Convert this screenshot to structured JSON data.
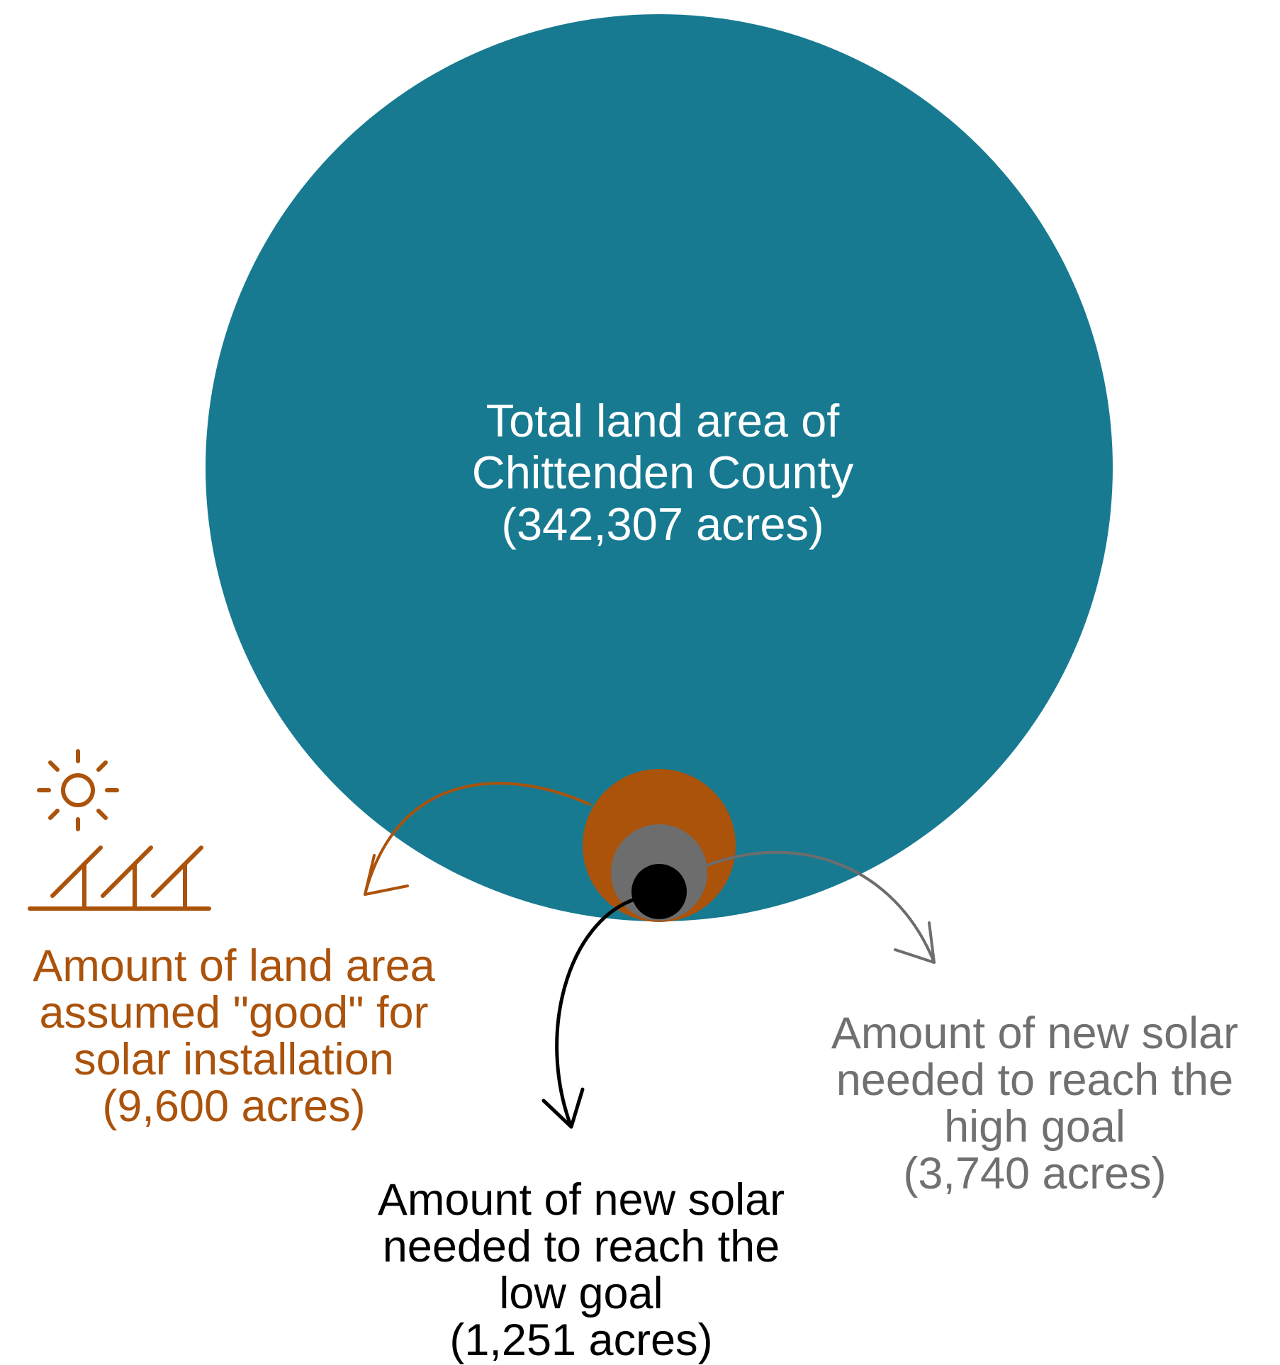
{
  "colors": {
    "total": "#177a91",
    "good": "#ab520b",
    "high": "#6d6d6d",
    "low": "#000000",
    "high_text": "#707070",
    "total_text": "#ffffff"
  },
  "icons": {
    "good": "solar-panel-icon"
  },
  "areas": {
    "total": {
      "line1": "Total land area of",
      "line2": "Chittenden County",
      "line3": "(342,307 acres)",
      "acres": 342307
    },
    "good": {
      "line1": "Amount of land area",
      "line2": "assumed \"good\" for",
      "line3": "solar installation",
      "line4": "(9,600 acres)",
      "acres": 9600
    },
    "high": {
      "line1": "Amount of new solar",
      "line2": "needed to reach the",
      "line3": "high goal",
      "line4": "(3,740 acres)",
      "acres": 3740
    },
    "low": {
      "line1": "Amount of new solar",
      "line2": "needed to reach the",
      "line3": "low goal",
      "line4": "(1,251 acres)",
      "acres": 1251
    }
  }
}
